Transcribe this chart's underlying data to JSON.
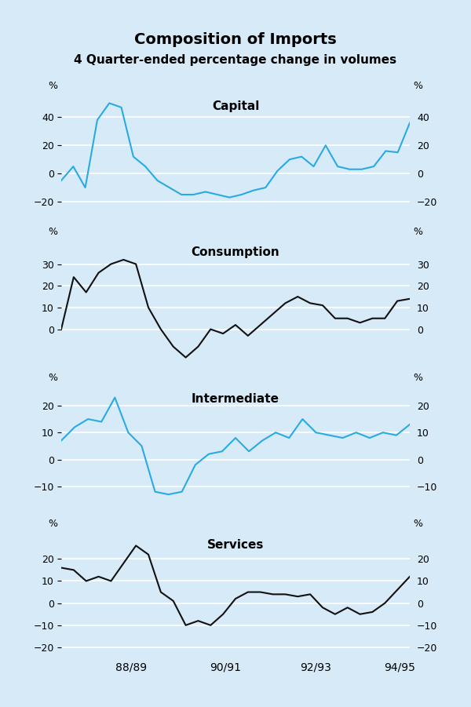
{
  "title": "Composition of Imports",
  "subtitle": "4 Quarter-ended percentage change in volumes",
  "background_color": "#d6eaf8",
  "plot_bg_color": "#d6eaf8",
  "line_color_blue": "#29abe2",
  "line_color_black": "#111111",
  "x_labels": [
    "88/89",
    "90/91",
    "92/93",
    "94/95"
  ],
  "panels": [
    {
      "label": "Capital",
      "color": "#29abe2",
      "ylim": [
        -30,
        58
      ],
      "yticks": [
        -20,
        0,
        20,
        40
      ],
      "data": [
        -5,
        5,
        -10,
        38,
        50,
        47,
        12,
        5,
        -5,
        -10,
        -15,
        -15,
        -13,
        -15,
        -17,
        -15,
        -12,
        -10,
        2,
        10,
        12,
        5,
        20,
        5,
        3,
        3,
        5,
        16,
        15,
        36
      ]
    },
    {
      "label": "Consumption",
      "color": "#111111",
      "ylim": [
        -15,
        42
      ],
      "yticks": [
        0,
        10,
        20,
        30
      ],
      "data": [
        0,
        24,
        17,
        26,
        30,
        32,
        30,
        10,
        0,
        -8,
        -13,
        -8,
        0,
        -2,
        2,
        -3,
        2,
        7,
        12,
        15,
        12,
        11,
        5,
        5,
        3,
        5,
        5,
        13,
        14
      ]
    },
    {
      "label": "Intermediate",
      "color": "#29abe2",
      "ylim": [
        -18,
        28
      ],
      "yticks": [
        -10,
        0,
        10,
        20
      ],
      "data": [
        7,
        12,
        15,
        14,
        23,
        10,
        5,
        -12,
        -13,
        -12,
        -2,
        2,
        3,
        8,
        3,
        7,
        10,
        8,
        15,
        10,
        9,
        8,
        10,
        8,
        10,
        9,
        13
      ]
    },
    {
      "label": "Services",
      "color": "#111111",
      "ylim": [
        -23,
        33
      ],
      "yticks": [
        -20,
        -10,
        0,
        10,
        20
      ],
      "data": [
        16,
        15,
        10,
        12,
        10,
        18,
        26,
        22,
        5,
        1,
        -10,
        -8,
        -10,
        -5,
        2,
        5,
        5,
        4,
        4,
        3,
        4,
        -2,
        -5,
        -2,
        -5,
        -4,
        0,
        6,
        12
      ]
    }
  ]
}
